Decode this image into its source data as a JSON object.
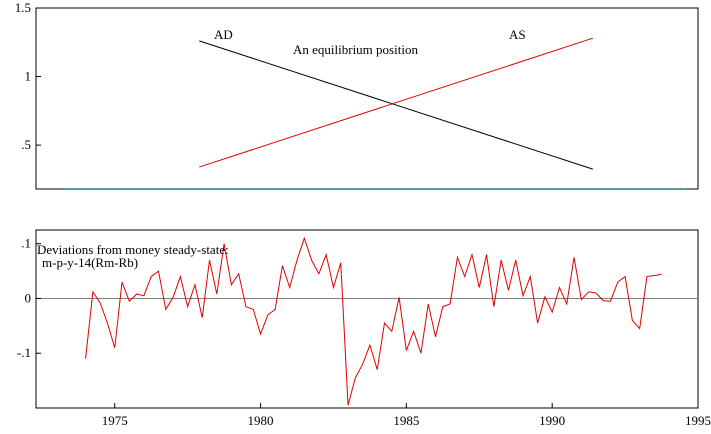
{
  "colors": {
    "ad": "#000000",
    "as": "#e00000",
    "series": "#e00000",
    "zero_line": "#808080",
    "baseline": "#2e7d7d",
    "frame": "#000000"
  },
  "chart_data": [
    {
      "type": "line",
      "ylim": [
        0.18,
        1.5
      ],
      "xlim": [
        0,
        1
      ],
      "yticks": [
        0.5,
        1,
        1.5
      ],
      "ytick_labels": [
        ".5",
        "1",
        "1.5"
      ],
      "annotations": {
        "ad": "AD",
        "as": "AS",
        "equilibrium": "An equilibrium position"
      },
      "series": [
        {
          "name": "AD",
          "x": [
            0.2466,
            0.8411
          ],
          "y": [
            1.26,
            0.325
          ]
        },
        {
          "name": "AS",
          "x": [
            0.2466,
            0.8411
          ],
          "y": [
            0.34,
            1.28
          ]
        }
      ],
      "grid": false
    },
    {
      "type": "line",
      "xlim": [
        1972.3,
        1995
      ],
      "ylim": [
        -0.2,
        0.125
      ],
      "xticks": [
        1975,
        1980,
        1985,
        1990,
        1995
      ],
      "xtick_labels": [
        "1975",
        "1980",
        "1985",
        "1990",
        "1995"
      ],
      "yticks": [
        -0.1,
        0,
        0.1
      ],
      "ytick_labels": [
        "-.1",
        "0",
        ".1"
      ],
      "annotation_lines": [
        "Deviations from money steady-state:",
        "m-p-y-14(Rm-Rb)"
      ],
      "zero_line": true,
      "grid": false,
      "x_start": 1974.0,
      "x_step": 0.25,
      "values": [
        -0.11,
        0.012,
        -0.008,
        -0.045,
        -0.09,
        0.03,
        -0.005,
        0.008,
        0.005,
        0.04,
        0.05,
        -0.02,
        0.002,
        0.04,
        -0.015,
        0.025,
        -0.035,
        0.07,
        0.008,
        0.1,
        0.025,
        0.045,
        -0.015,
        -0.02,
        -0.065,
        -0.03,
        -0.02,
        0.06,
        0.02,
        0.07,
        0.11,
        0.07,
        0.045,
        0.08,
        0.02,
        0.065,
        -0.195,
        -0.145,
        -0.12,
        -0.085,
        -0.13,
        -0.045,
        -0.06,
        0.002,
        -0.095,
        -0.06,
        -0.1,
        -0.01,
        -0.07,
        -0.015,
        -0.01,
        0.075,
        0.04,
        0.08,
        0.02,
        0.08,
        -0.015,
        0.07,
        0.015,
        0.07,
        0.005,
        0.04,
        -0.045,
        0.003,
        -0.025,
        0.02,
        -0.01,
        0.075,
        -0.002,
        0.012,
        0.01,
        -0.004,
        -0.005,
        0.03,
        0.04,
        -0.04,
        -0.055,
        0.04,
        0.042,
        0.044
      ]
    }
  ]
}
